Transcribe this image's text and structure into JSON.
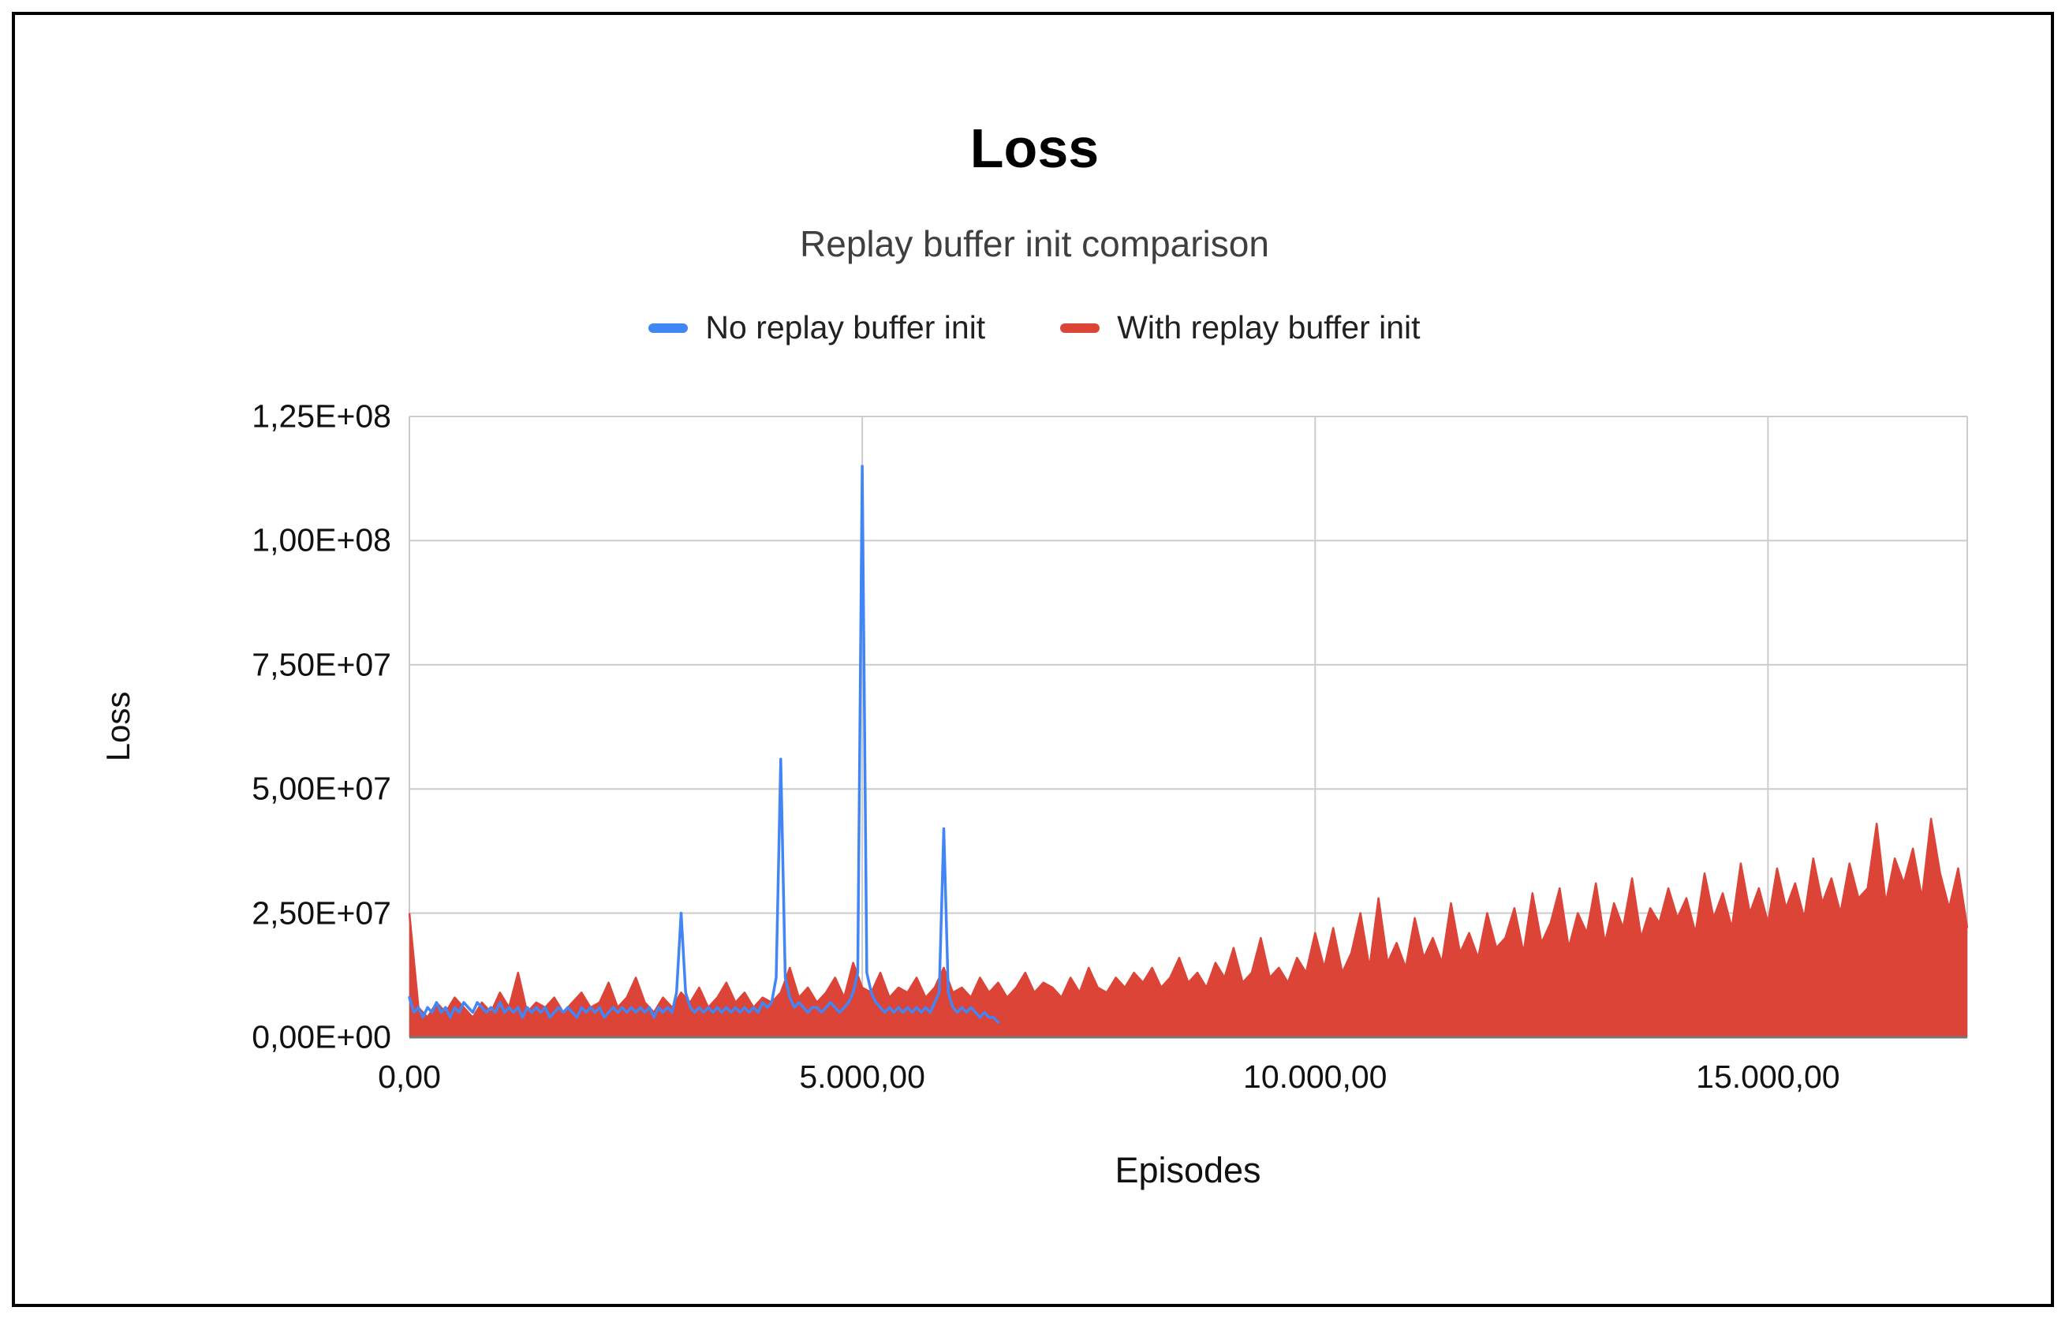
{
  "chart_data": {
    "type": "line",
    "title": "Loss",
    "subtitle": "Replay buffer init comparison",
    "xlabel": "Episodes",
    "ylabel": "Loss",
    "xlim": [
      0,
      17200
    ],
    "ylim": [
      0,
      125000000
    ],
    "grid": true,
    "legend_position": "top",
    "y_multiplier": 1000000,
    "colors": {
      "gridline": "#cccccc",
      "axis_line": "#757575"
    },
    "x_ticks": [
      {
        "value": 0,
        "label": "0,00"
      },
      {
        "value": 5000,
        "label": "5.000,00"
      },
      {
        "value": 10000,
        "label": "10.000,00"
      },
      {
        "value": 15000,
        "label": "15.000,00"
      }
    ],
    "y_ticks": [
      {
        "value": 0,
        "label": "0,00E+00"
      },
      {
        "value": 25000000,
        "label": "2,50E+07"
      },
      {
        "value": 50000000,
        "label": "5,00E+07"
      },
      {
        "value": 75000000,
        "label": "7,50E+07"
      },
      {
        "value": 100000000,
        "label": "1,00E+08"
      },
      {
        "value": 125000000,
        "label": "1,25E+08"
      }
    ],
    "series": [
      {
        "name": "No replay buffer init",
        "color": "#4285F4",
        "style": "line",
        "x_start": 0,
        "x_step": 50,
        "values_millions": [
          8,
          5,
          6,
          4,
          6,
          5,
          7,
          5,
          6,
          4,
          6,
          5,
          7,
          6,
          5,
          7,
          6,
          5,
          6,
          5,
          7,
          5,
          6,
          5,
          6,
          4,
          6,
          5,
          6,
          5,
          6,
          4,
          5,
          6,
          5,
          6,
          5,
          4,
          6,
          5,
          6,
          5,
          6,
          4,
          5,
          6,
          5,
          6,
          5,
          6,
          5,
          6,
          5,
          6,
          4,
          6,
          5,
          6,
          5,
          9,
          25,
          9,
          6,
          5,
          6,
          5,
          6,
          5,
          6,
          5,
          6,
          5,
          6,
          5,
          6,
          5,
          6,
          5,
          7,
          6,
          7,
          12,
          56,
          12,
          8,
          6,
          7,
          6,
          5,
          6,
          6,
          5,
          6,
          7,
          6,
          5,
          6,
          7,
          9,
          13,
          115,
          13,
          9,
          7,
          6,
          5,
          6,
          5,
          6,
          5,
          6,
          5,
          6,
          5,
          6,
          5,
          7,
          9,
          42,
          9,
          6,
          5,
          6,
          5,
          6,
          5,
          4,
          5,
          4,
          4,
          3
        ]
      },
      {
        "name": "With replay buffer init",
        "color": "#DB4437",
        "style": "area",
        "x_start": 0,
        "x_step": 100,
        "values_millions": [
          25,
          6,
          4,
          7,
          5,
          8,
          6,
          4,
          7,
          5,
          9,
          6,
          13,
          5,
          7,
          6,
          8,
          5,
          7,
          9,
          6,
          7,
          11,
          6,
          8,
          12,
          7,
          5,
          8,
          6,
          9,
          7,
          10,
          6,
          8,
          11,
          7,
          9,
          6,
          8,
          7,
          9,
          14,
          8,
          10,
          7,
          9,
          12,
          8,
          15,
          10,
          9,
          13,
          8,
          10,
          9,
          12,
          8,
          10,
          14,
          9,
          10,
          8,
          12,
          9,
          11,
          8,
          10,
          13,
          9,
          11,
          10,
          8,
          12,
          9,
          14,
          10,
          9,
          12,
          10,
          13,
          11,
          14,
          10,
          12,
          16,
          11,
          13,
          10,
          15,
          12,
          18,
          11,
          13,
          20,
          12,
          14,
          11,
          16,
          13,
          21,
          14,
          22,
          13,
          17,
          25,
          14,
          28,
          15,
          19,
          14,
          24,
          16,
          20,
          15,
          27,
          17,
          21,
          16,
          25,
          18,
          20,
          26,
          17,
          29,
          19,
          23,
          30,
          18,
          25,
          21,
          31,
          19,
          27,
          22,
          32,
          20,
          26,
          23,
          30,
          24,
          28,
          21,
          33,
          24,
          29,
          22,
          35,
          25,
          30,
          23,
          34,
          26,
          31,
          24,
          36,
          27,
          32,
          25,
          35,
          28,
          30,
          43,
          27,
          36,
          31,
          38,
          28,
          44,
          33,
          26,
          34,
          22
        ]
      }
    ]
  }
}
